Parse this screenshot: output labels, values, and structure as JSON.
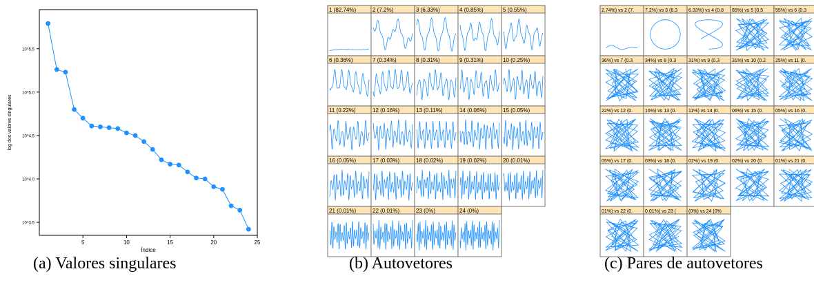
{
  "captions": {
    "a": "(a)  Valores singulares",
    "b": "(b)  Autovetores",
    "c": "(c)  Pares de autovetores"
  },
  "colors": {
    "series": "#1e90ff",
    "strip": "#ffe4b5",
    "frame": "#555555"
  },
  "chart_data": [
    {
      "type": "line",
      "title": "",
      "xlabel": "Índice",
      "ylabel": "log dos valores singulares",
      "x": [
        1,
        2,
        3,
        4,
        5,
        6,
        7,
        8,
        9,
        10,
        11,
        12,
        13,
        14,
        15,
        16,
        17,
        18,
        19,
        20,
        21,
        22,
        23,
        24
      ],
      "y_log10": [
        5.79,
        5.26,
        5.23,
        4.8,
        4.7,
        4.61,
        4.6,
        4.59,
        4.58,
        4.53,
        4.5,
        4.43,
        4.34,
        4.22,
        4.17,
        4.16,
        4.08,
        4.01,
        4.0,
        3.91,
        3.88,
        3.69,
        3.64,
        3.42
      ],
      "xlim": [
        0,
        25
      ],
      "ylim_log10": [
        3.35,
        5.95
      ],
      "xticks": [
        "5",
        "10",
        "15",
        "20",
        "25"
      ],
      "yticks": [
        "10^3.5",
        "10^4.0",
        "10^4.5",
        "10^5.0",
        "10^5.5"
      ],
      "grid": false
    },
    {
      "type": "line",
      "title": "",
      "panels": [
        "1 (82.74%)",
        "2 (7.2%)",
        "3 (6.33%)",
        "4 (0.85%)",
        "5 (0.55%)",
        "6 (0.36%)",
        "7 (0.34%)",
        "8 (0.31%)",
        "9 (0.31%)",
        "10 (0.25%)",
        "11 (0.22%)",
        "12 (0.16%)",
        "13 (0.11%)",
        "14 (0.06%)",
        "15 (0.05%)",
        "16 (0.05%)",
        "17 (0.03%)",
        "18 (0.02%)",
        "19 (0.02%)",
        "20 (0.01%)",
        "21 (0.01%)",
        "22 (0.01%)",
        "23 (0%)",
        "24 (0%)"
      ]
    },
    {
      "type": "line",
      "title": "",
      "panels": [
        "2.74%) vs 2 (7.",
        "7.2%) vs 3 (6.3",
        "6.33%) vs 4 (0.8",
        "85%) vs 5 (0.5",
        "55%) vs 6 (0.3",
        "36%) vs 7 (0.3",
        "34%) vs 8 (0.3",
        "31%) vs 9 (0.3",
        "31%) vs 10 (0.2",
        "25%) vs 11 (0.",
        "22%) vs 12 (0.",
        "16%) vs 13 (0.",
        "11%) vs 14 (0.",
        "06%) vs 15 (0.",
        "05%) vs 16 (0.",
        "05%) vs 17 (0.",
        "03%) vs 18 (0.",
        "02%) vs 19 (0.",
        "02%) vs 20 (0.",
        "01%) vs 21 (0.",
        "01%) vs 22 (0.",
        "0.01%) vs 23 (",
        "(0%) vs 24 (0%"
      ]
    }
  ]
}
